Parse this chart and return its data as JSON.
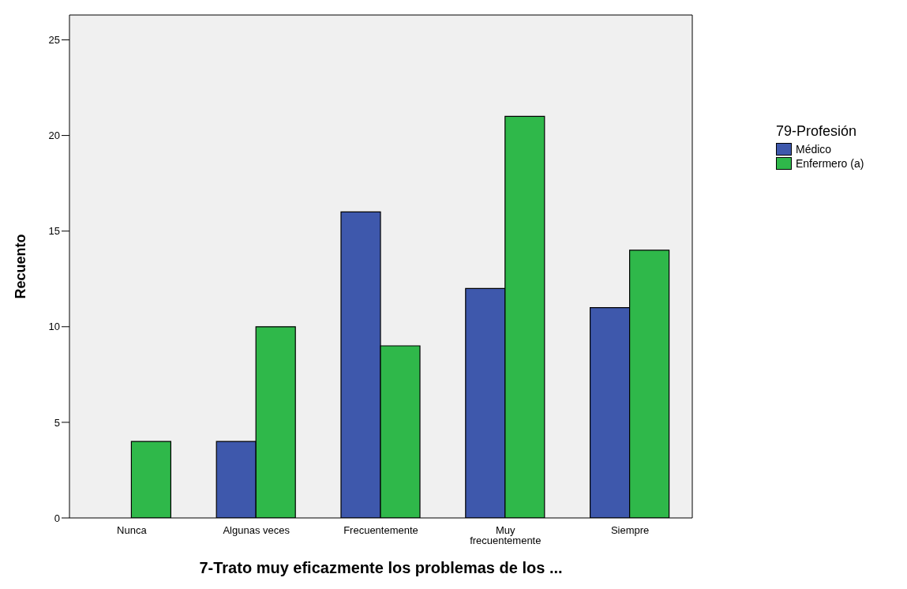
{
  "chart_data": {
    "type": "bar",
    "xlabel": "7-Trato muy eficazmente los problemas de los ...",
    "ylabel": "Recuento",
    "legend_title": "79-Profesión",
    "categories": [
      "Nunca",
      "Algunas veces",
      "Frecuentemente",
      "Muy frecuentemente",
      "Siempre"
    ],
    "series": [
      {
        "name": "Médico",
        "color": "#3e58ac",
        "values": [
          0,
          4,
          16,
          12,
          11
        ]
      },
      {
        "name": "Enfermero (a)",
        "color": "#2fb84a",
        "values": [
          4,
          10,
          9,
          21,
          14
        ]
      }
    ],
    "ylim": [
      0,
      26.3
    ],
    "yticks": [
      0,
      5,
      10,
      15,
      20,
      25
    ],
    "grid": false,
    "legend": "right"
  }
}
